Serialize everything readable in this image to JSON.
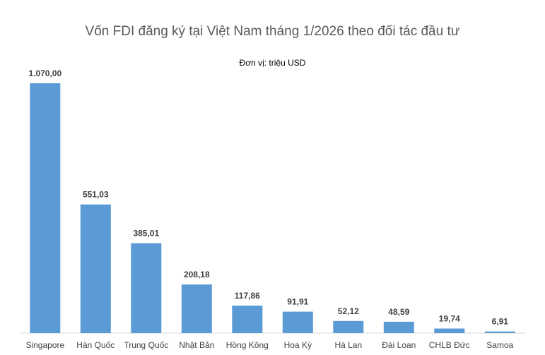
{
  "chart_data": {
    "type": "bar",
    "title": "Vốn FDI đăng ký tại Việt Nam tháng 1/2026 theo đối tác đầu tư",
    "unit_label": "Đơn vị: triệu USD",
    "categories": [
      "Singapore",
      "Hàn Quốc",
      "Trung Quốc",
      "Nhật Bản",
      "Hồng Kông",
      "Hoa Kỳ",
      "Hà Lan",
      "Đài Loan",
      "CHLB Đức",
      "Samoa"
    ],
    "values": [
      1070.0,
      551.03,
      385.01,
      208.18,
      117.86,
      91.91,
      52.12,
      48.59,
      19.74,
      6.91
    ],
    "data_labels": [
      "1.070,00",
      "551,03",
      "385,01",
      "208,18",
      "117,86",
      "91,91",
      "52,12",
      "48,59",
      "19,74",
      "6,91"
    ],
    "ylim": [
      0,
      1070
    ],
    "grid": false,
    "colors": {
      "bar": "#5B9BD5"
    }
  }
}
